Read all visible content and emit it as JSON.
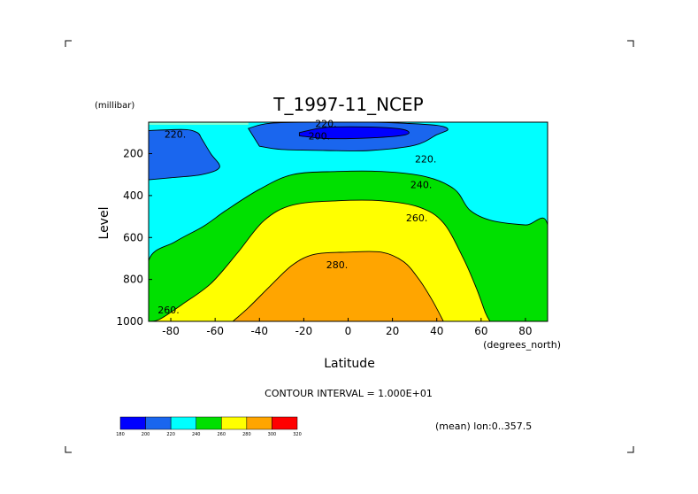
{
  "chart_data": {
    "type": "contour",
    "title": "T_1997-11_NCEP",
    "xlabel": "Latitude",
    "x_units": "(degrees_north)",
    "ylabel": "Level",
    "y_units": "(millibar)",
    "xlim": [
      -90,
      90
    ],
    "ylim": [
      1000,
      50
    ],
    "y_inverted": true,
    "x_ticks": [
      {
        "value": -80,
        "label": "-80"
      },
      {
        "value": -60,
        "label": "-60"
      },
      {
        "value": -40,
        "label": "-40"
      },
      {
        "value": -20,
        "label": "-20"
      },
      {
        "value": 0,
        "label": "0"
      },
      {
        "value": 20,
        "label": "20"
      },
      {
        "value": 40,
        "label": "40"
      },
      {
        "value": 60,
        "label": "60"
      },
      {
        "value": 80,
        "label": "80"
      }
    ],
    "y_ticks": [
      {
        "value": 200,
        "label": "200"
      },
      {
        "value": 400,
        "label": "400"
      },
      {
        "value": 600,
        "label": "600"
      },
      {
        "value": 800,
        "label": "800"
      },
      {
        "value": 1000,
        "label": "1000"
      }
    ],
    "contour_interval_text": "CONTOUR INTERVAL = 1.000E+01",
    "subtitle_right": "(mean) lon:0..357.5",
    "colorbar": {
      "levels": [
        "180",
        "200",
        "220",
        "240",
        "260",
        "280",
        "300",
        "320"
      ],
      "colors": [
        "#0000ff",
        "#1a66ee",
        "#00ffff",
        "#00e000",
        "#ffff00",
        "#ffa500",
        "#ff0000"
      ]
    },
    "contour_labels": [
      {
        "text": "220.",
        "lat": -78,
        "level": 108
      },
      {
        "text": "220.",
        "lat": -10,
        "level": 56
      },
      {
        "text": "200.",
        "lat": -13,
        "level": 115
      },
      {
        "text": "220.",
        "lat": 35,
        "level": 225
      },
      {
        "text": "240.",
        "lat": 33,
        "level": 347
      },
      {
        "text": "260.",
        "lat": 31,
        "level": 505
      },
      {
        "text": "280.",
        "lat": -5,
        "level": 730
      },
      {
        "text": "260.",
        "lat": -81,
        "level": 945
      }
    ],
    "regions": [
      {
        "level": "180",
        "color": "#0000ff",
        "outline": [
          [
            -22,
            100
          ],
          [
            -10,
            75
          ],
          [
            10,
            73
          ],
          [
            25,
            85
          ],
          [
            26,
            110
          ],
          [
            10,
            125
          ],
          [
            -10,
            128
          ],
          [
            -22,
            115
          ]
        ]
      },
      {
        "level": "200",
        "color": "#1a66ee",
        "outline": [
          [
            -90,
            90
          ],
          [
            -74,
            85
          ],
          [
            -68,
            100
          ],
          [
            -66,
            130
          ],
          [
            -62,
            200
          ],
          [
            -58,
            265
          ],
          [
            -66,
            300
          ],
          [
            -80,
            315
          ],
          [
            -90,
            325
          ]
        ]
      },
      {
        "level": "200",
        "color": "#1a66ee",
        "outline": [
          [
            -45,
            80
          ],
          [
            -35,
            55
          ],
          [
            -10,
            50
          ],
          [
            10,
            50
          ],
          [
            25,
            55
          ],
          [
            40,
            65
          ],
          [
            45,
            85
          ],
          [
            40,
            110
          ],
          [
            30,
            160
          ],
          [
            10,
            185
          ],
          [
            -10,
            185
          ],
          [
            -30,
            180
          ],
          [
            -40,
            165
          ]
        ]
      },
      {
        "level": "240",
        "color": "#00e000",
        "outline": [
          [
            -90,
            1000
          ],
          [
            -90,
            710
          ],
          [
            -78,
            620
          ],
          [
            -65,
            545
          ],
          [
            -55,
            470
          ],
          [
            -40,
            370
          ],
          [
            -25,
            300
          ],
          [
            -5,
            285
          ],
          [
            15,
            285
          ],
          [
            35,
            310
          ],
          [
            48,
            370
          ],
          [
            55,
            470
          ],
          [
            65,
            520
          ],
          [
            80,
            540
          ],
          [
            90,
            540
          ],
          [
            90,
            1000
          ]
        ]
      },
      {
        "level": "260",
        "color": "#ffff00",
        "outline": [
          [
            -90,
            1000
          ],
          [
            -85,
            990
          ],
          [
            -75,
            920
          ],
          [
            -62,
            820
          ],
          [
            -50,
            675
          ],
          [
            -38,
            520
          ],
          [
            -25,
            445
          ],
          [
            -5,
            425
          ],
          [
            15,
            425
          ],
          [
            32,
            455
          ],
          [
            43,
            530
          ],
          [
            52,
            700
          ],
          [
            58,
            845
          ],
          [
            62,
            960
          ],
          [
            64,
            1000
          ]
        ]
      },
      {
        "level": "280",
        "color": "#ffa500",
        "outline": [
          [
            -52,
            1000
          ],
          [
            -45,
            935
          ],
          [
            -35,
            830
          ],
          [
            -25,
            730
          ],
          [
            -15,
            680
          ],
          [
            0,
            670
          ],
          [
            15,
            670
          ],
          [
            25,
            715
          ],
          [
            32,
            800
          ],
          [
            38,
            900
          ],
          [
            43,
            1000
          ]
        ]
      }
    ]
  }
}
